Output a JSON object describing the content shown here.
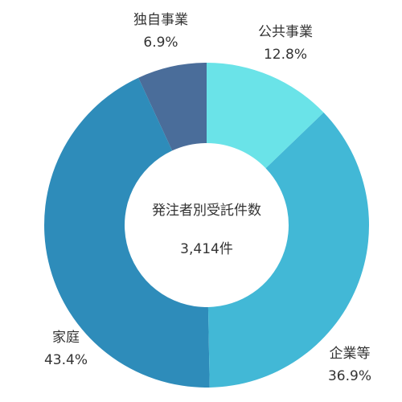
{
  "chart_data": {
    "type": "donut",
    "categories": [
      "公共事業",
      "企業等",
      "家庭",
      "独自事業"
    ],
    "values": [
      12.8,
      36.9,
      43.4,
      6.9
    ],
    "value_labels": [
      "12.8%",
      "36.9%",
      "43.4%",
      "6.9%"
    ],
    "colors": [
      "#6ae3e8",
      "#42b8d6",
      "#2e8cba",
      "#4a6d9a"
    ],
    "center_title": "発注者別受託件数",
    "center_value": "3,414件"
  }
}
